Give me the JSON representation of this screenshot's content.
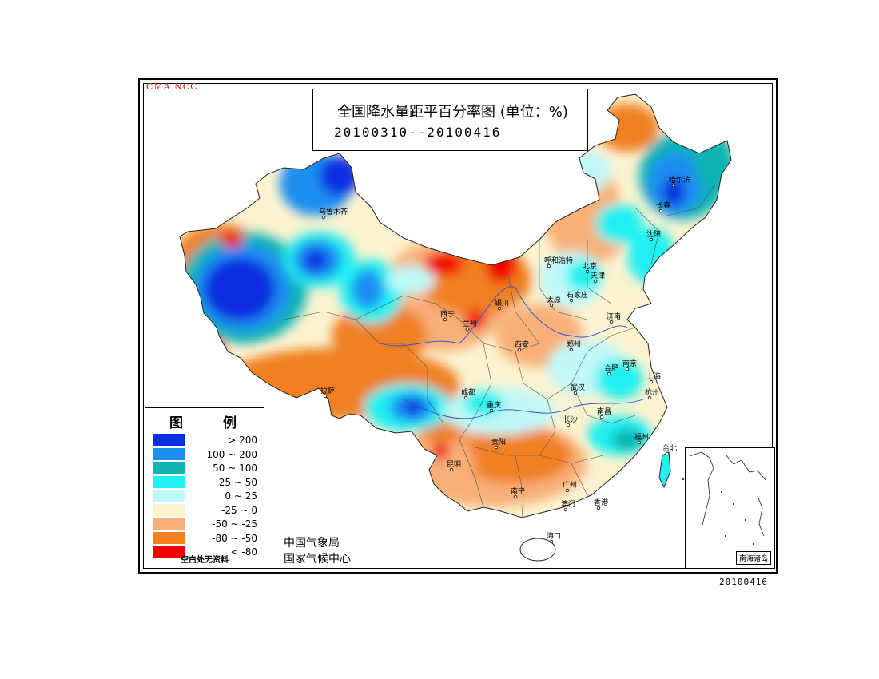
{
  "watermark": "CMA NCC",
  "title": {
    "main": "全国降水量距平百分率图 (单位：%)",
    "dates": "20100310--20100416"
  },
  "legend": {
    "title": "图 例",
    "items": [
      {
        "label": "> 200",
        "color": "#0a2ee0"
      },
      {
        "label": "100 ~ 200",
        "color": "#1e8ef0"
      },
      {
        "label": "50 ~ 100",
        "color": "#10b4b4"
      },
      {
        "label": "25 ~ 50",
        "color": "#20f0f0"
      },
      {
        "label": "0 ~ 25",
        "color": "#c0f8f8"
      },
      {
        "label": "-25 ~ 0",
        "color": "#fbf3d0"
      },
      {
        "label": "-50 ~ -25",
        "color": "#f8b078"
      },
      {
        "label": "-80 ~ -50",
        "color": "#f08020"
      },
      {
        "label": "< -80",
        "color": "#f00000"
      }
    ],
    "note": "空白处无资料"
  },
  "agency": {
    "line1": "中国气象局",
    "line2": "国家气候中心"
  },
  "inset": {
    "label": "南海诸岛"
  },
  "footer_date": "20100416",
  "cities": [
    {
      "name": "乌鲁木齐"
    },
    {
      "name": "哈尔滨"
    },
    {
      "name": "长春"
    },
    {
      "name": "沈阳"
    },
    {
      "name": "呼和浩特"
    },
    {
      "name": "北京"
    },
    {
      "name": "天津"
    },
    {
      "name": "银川"
    },
    {
      "name": "太原"
    },
    {
      "name": "石家庄"
    },
    {
      "name": "西宁"
    },
    {
      "name": "兰州"
    },
    {
      "name": "济南"
    },
    {
      "name": "西安"
    },
    {
      "name": "郑州"
    },
    {
      "name": "合肥"
    },
    {
      "name": "南京"
    },
    {
      "name": "上海"
    },
    {
      "name": "拉萨"
    },
    {
      "name": "成都"
    },
    {
      "name": "武汉"
    },
    {
      "name": "杭州"
    },
    {
      "name": "重庆"
    },
    {
      "name": "长沙"
    },
    {
      "name": "南昌"
    },
    {
      "name": "福州"
    },
    {
      "name": "贵阳"
    },
    {
      "name": "台北"
    },
    {
      "name": "昆明"
    },
    {
      "name": "南宁"
    },
    {
      "name": "广州"
    },
    {
      "name": "澳门"
    },
    {
      "name": "香港"
    },
    {
      "name": "海口"
    }
  ]
}
